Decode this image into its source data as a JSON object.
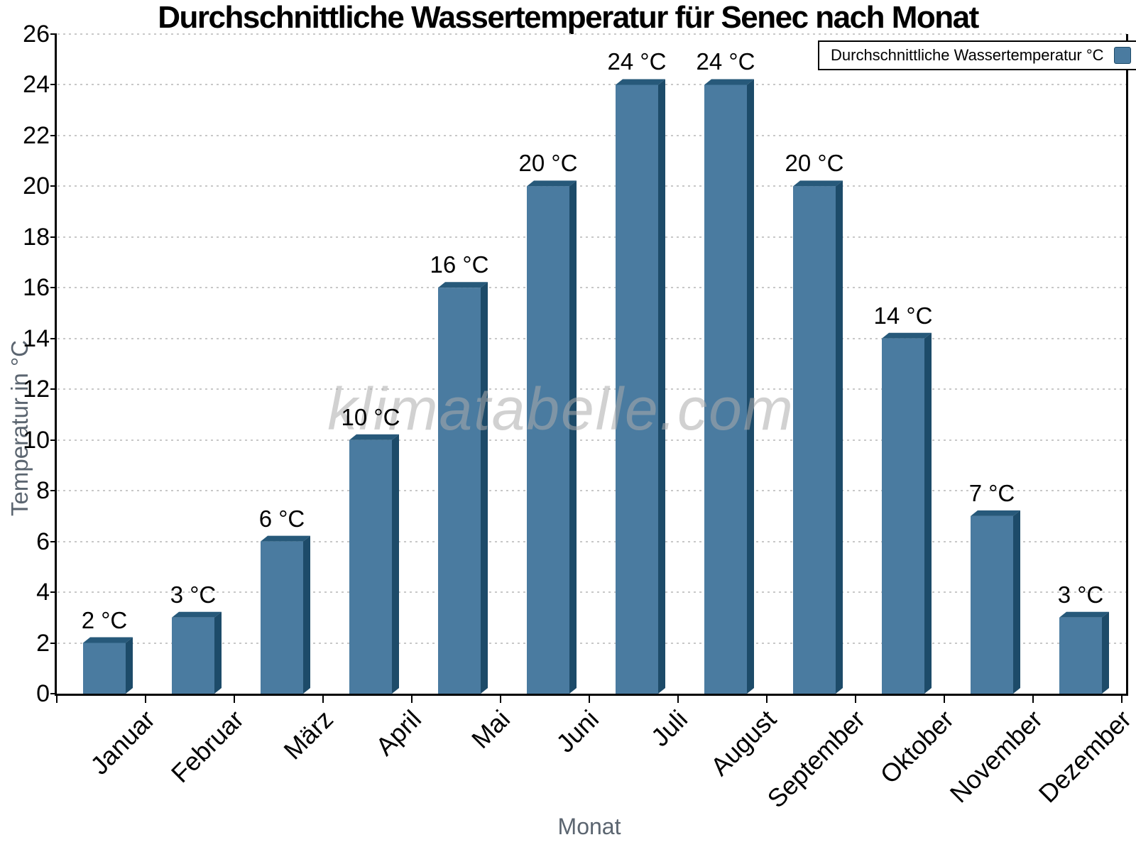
{
  "title": "Durchschnittliche Wassertemperatur für Senec nach Monat",
  "legend": {
    "label": "Durchschnittliche Wassertemperatur °C",
    "position": "top-right"
  },
  "watermark": "klimatabelle.com",
  "chart_data": {
    "type": "bar",
    "title": "Durchschnittliche Wassertemperatur für Senec nach Monat",
    "categories": [
      "Januar",
      "Februar",
      "März",
      "April",
      "Mai",
      "Juni",
      "Juli",
      "August",
      "September",
      "Oktober",
      "November",
      "Dezember"
    ],
    "values": [
      2,
      3,
      6,
      10,
      16,
      20,
      24,
      24,
      20,
      14,
      7,
      3
    ],
    "unit": "°C",
    "value_label_format": "{value} °C",
    "xlabel": "Monat",
    "ylabel": "Temperatur in °C",
    "ylim": [
      0,
      26
    ],
    "ytick_step": 2,
    "grid": "dotted horizontal",
    "legend_position": "top-right",
    "colors": {
      "bar_face": "#4a7ba0",
      "bar_side": "#1d4b69",
      "bar_top": "#27597a",
      "gridline": "#c8c8c8",
      "axis": "#000000",
      "axis_title": "#5b6570",
      "tick_label": "#000000",
      "watermark": "#acacac"
    }
  }
}
